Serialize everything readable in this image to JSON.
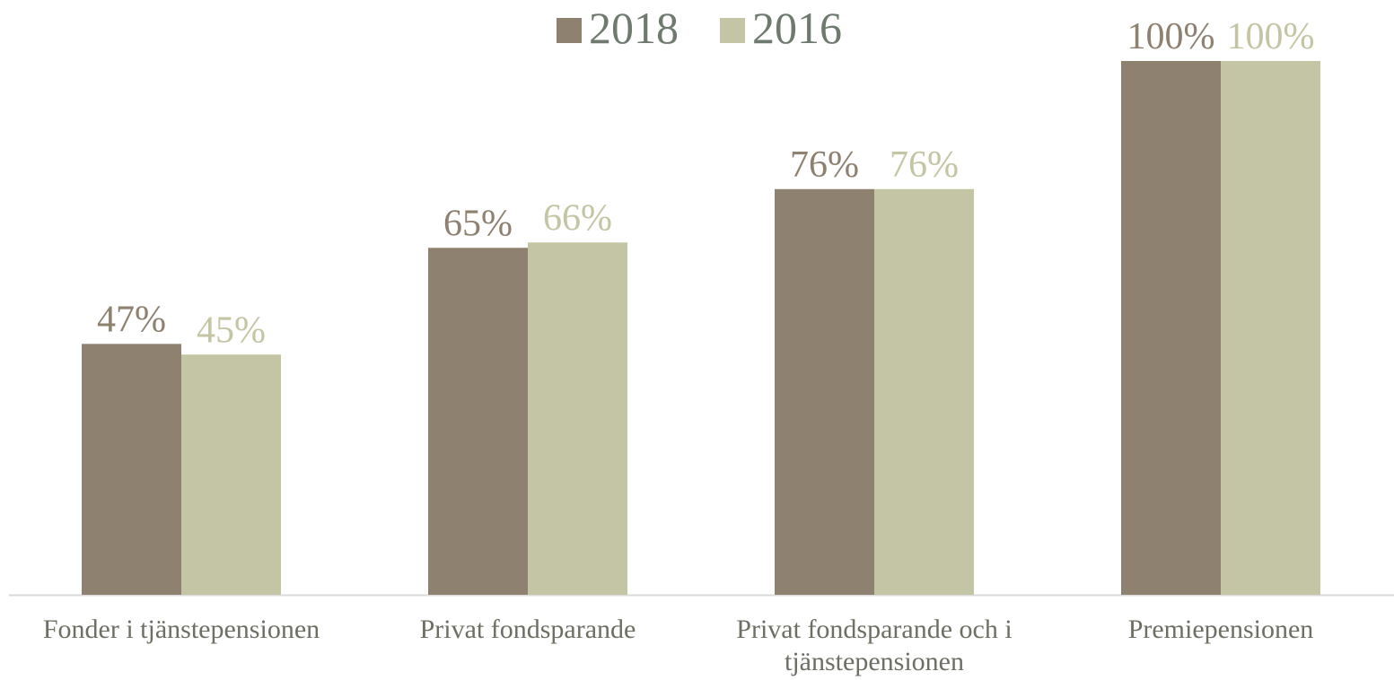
{
  "chart_data": {
    "type": "bar",
    "categories": [
      "Fonder i tjänstepensionen",
      "Privat fondsparande",
      "Privat fondsparande och i tjänstepensionen",
      "Premiepensionen"
    ],
    "series": [
      {
        "name": "2018",
        "color": "#8e8170",
        "values": [
          47,
          65,
          76,
          100
        ],
        "value_labels": [
          "47%",
          "65%",
          "76%",
          "100%"
        ]
      },
      {
        "name": "2016",
        "color": "#c4c5a4",
        "values": [
          45,
          66,
          76,
          100
        ],
        "value_labels": [
          "45%",
          "66%",
          "76%",
          "100%"
        ]
      }
    ],
    "legend": "top"
  }
}
